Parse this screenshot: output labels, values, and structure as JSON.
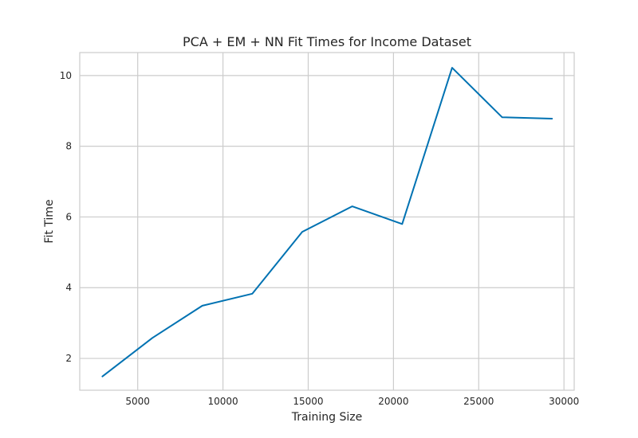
{
  "chart_data": {
    "type": "line",
    "title": "PCA + EM + NN Fit Times for Income Dataset",
    "xlabel": "Training Size",
    "ylabel": "Fit Time",
    "xlim": [
      1600,
      30600
    ],
    "ylim": [
      1.1,
      10.65
    ],
    "xticks": [
      5000,
      10000,
      15000,
      20000,
      25000,
      30000
    ],
    "yticks": [
      2,
      4,
      6,
      8,
      10
    ],
    "grid": true,
    "legend": "none",
    "series": [
      {
        "color": "#0072b2",
        "x": [
          2930,
          5860,
          8790,
          11720,
          14650,
          17580,
          20510,
          23440,
          26370,
          29300
        ],
        "y": [
          1.49,
          2.58,
          3.49,
          3.83,
          5.58,
          6.3,
          5.8,
          10.22,
          8.82,
          8.78
        ]
      }
    ]
  }
}
